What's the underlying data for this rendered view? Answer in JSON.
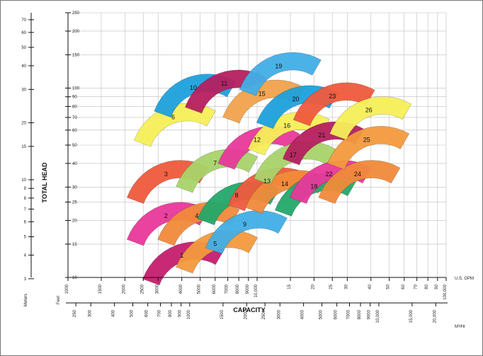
{
  "chart_data": {
    "type": "scatter",
    "title": "",
    "axis_labels": {
      "y": "TOTAL HEAD",
      "x": "CAPACITY",
      "y_meters": "Meters",
      "y_feet": "Feet",
      "x_gpm": "U.S. GPM",
      "x_m3h": "M³/Hr"
    },
    "y_scale": "log",
    "x_scale": "log",
    "y_feet_ticks": [
      "10",
      "15",
      "20",
      "25",
      "30",
      "40",
      "50",
      "60",
      "70",
      "80",
      "90",
      "100",
      "150",
      "200",
      "250"
    ],
    "y_meter_ticks": [
      "3",
      "4",
      "5",
      "6",
      "7",
      "8",
      "9",
      "10",
      "15",
      "20",
      "30",
      "40",
      "50",
      "60",
      "70"
    ],
    "x_gpm_ticks": [
      "1000",
      "1500",
      "2000",
      "2500",
      "3000",
      "4000",
      "5000",
      "6000",
      "7000",
      "8000",
      "9000",
      "10,000",
      "15",
      "20",
      "25",
      "30",
      "40",
      "50",
      "60",
      "70",
      "80",
      "90",
      "100,000"
    ],
    "x_m3h_ticks": [
      "250",
      "300",
      "400",
      "500",
      "600",
      "700",
      "800",
      "900",
      "1000",
      "1500",
      "2000",
      "2500",
      "3000",
      "4000",
      "5000",
      "6000",
      "7000",
      "8000",
      "9000",
      "10,000",
      "15,000",
      "20,000"
    ],
    "grid": true,
    "zones": [
      {
        "label": "1",
        "color": "#c41e6e",
        "gpm": 4000,
        "head": 13
      },
      {
        "label": "2",
        "color": "#e8389a",
        "gpm": 3300,
        "head": 21
      },
      {
        "label": "3",
        "color": "#ef5a3c",
        "gpm": 3300,
        "head": 35
      },
      {
        "label": "4",
        "color": "#f08a3a",
        "gpm": 4800,
        "head": 21
      },
      {
        "label": "5",
        "color": "#f39a3e",
        "gpm": 6000,
        "head": 15
      },
      {
        "label": "6",
        "color": "#f6ef58",
        "gpm": 3600,
        "head": 70
      },
      {
        "label": "7",
        "color": "#a8d36a",
        "gpm": 6000,
        "head": 40
      },
      {
        "label": "8",
        "color": "#23a86a",
        "gpm": 7800,
        "head": 27
      },
      {
        "label": "9",
        "color": "#41aee6",
        "gpm": 8600,
        "head": 19
      },
      {
        "label": "10",
        "color": "#1ea0dc",
        "gpm": 4600,
        "head": 100
      },
      {
        "label": "11",
        "color": "#b51f5f",
        "gpm": 6700,
        "head": 105
      },
      {
        "label": "12",
        "color": "#e8389a",
        "gpm": 10000,
        "head": 53
      },
      {
        "label": "13",
        "color": "#ef5a3c",
        "gpm": 11300,
        "head": 32
      },
      {
        "label": "14",
        "color": "#f08a3a",
        "gpm": 14000,
        "head": 31
      },
      {
        "label": "15",
        "color": "#f0a24c",
        "gpm": 10600,
        "head": 93
      },
      {
        "label": "16",
        "color": "#f6ef58",
        "gpm": 14400,
        "head": 63
      },
      {
        "label": "17",
        "color": "#a8d36a",
        "gpm": 15500,
        "head": 44
      },
      {
        "label": "18",
        "color": "#23a86a",
        "gpm": 20000,
        "head": 30
      },
      {
        "label": "19",
        "color": "#41aee6",
        "gpm": 13000,
        "head": 130
      },
      {
        "label": "20",
        "color": "#1ea0dc",
        "gpm": 16000,
        "head": 87
      },
      {
        "label": "21",
        "color": "#b51f5f",
        "gpm": 22000,
        "head": 56
      },
      {
        "label": "22",
        "color": "#e8389a",
        "gpm": 24000,
        "head": 35
      },
      {
        "label": "23",
        "color": "#ef5a3c",
        "gpm": 25000,
        "head": 90
      },
      {
        "label": "24",
        "color": "#f08a3a",
        "gpm": 34000,
        "head": 35
      },
      {
        "label": "25",
        "color": "#f39a3e",
        "gpm": 38000,
        "head": 53
      },
      {
        "label": "26",
        "color": "#f6ef58",
        "gpm": 39000,
        "head": 76
      }
    ]
  }
}
